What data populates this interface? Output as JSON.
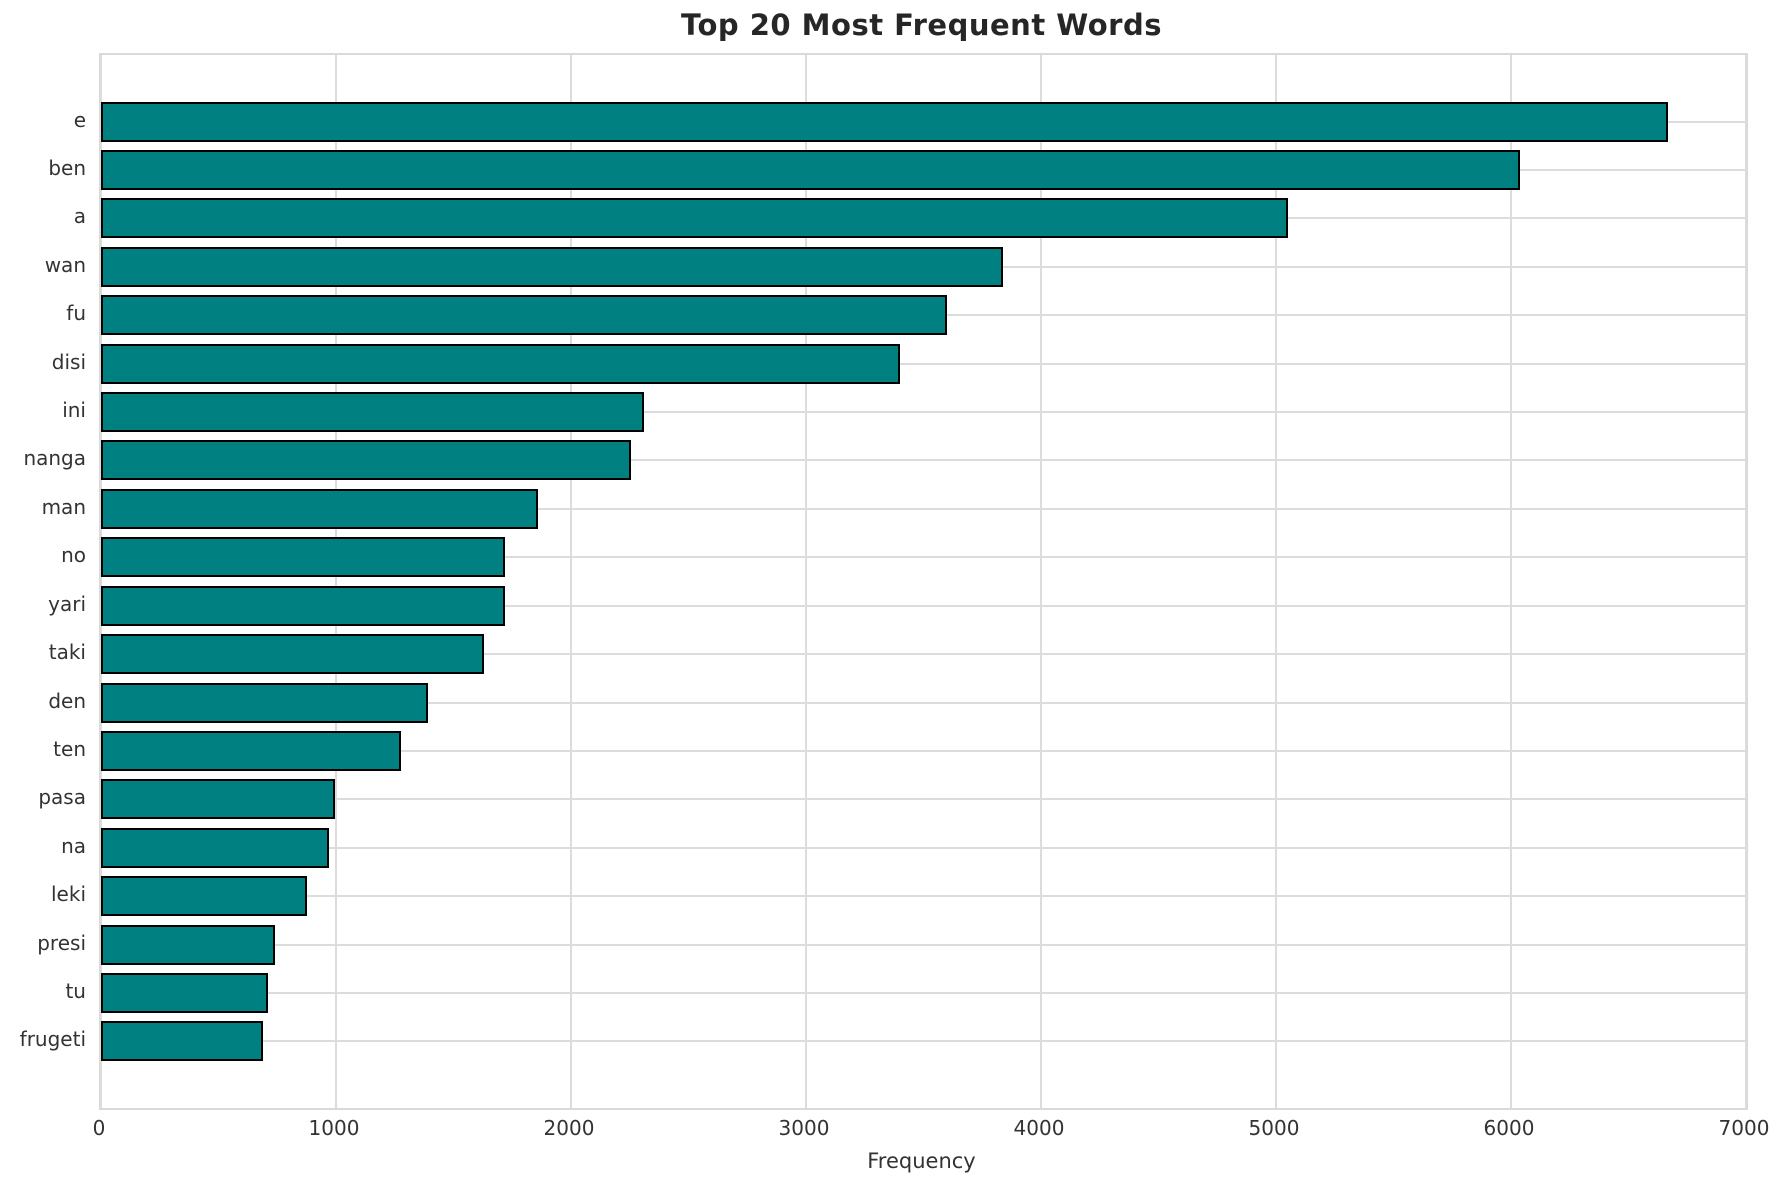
{
  "chart_data": {
    "type": "bar",
    "orientation": "horizontal",
    "title": "Top 20 Most Frequent Words",
    "xlabel": "Frequency",
    "ylabel": "",
    "categories": [
      "e",
      "ben",
      "a",
      "wan",
      "fu",
      "disi",
      "ini",
      "nanga",
      "man",
      "no",
      "yari",
      "taki",
      "den",
      "ten",
      "pasa",
      "na",
      "leki",
      "presi",
      "tu",
      "frugeti"
    ],
    "values": [
      6670,
      6040,
      5050,
      3840,
      3600,
      3400,
      2310,
      2255,
      1860,
      1720,
      1720,
      1630,
      1390,
      1275,
      995,
      970,
      875,
      740,
      710,
      690
    ],
    "xlim": [
      0,
      7000
    ],
    "xticks": [
      0,
      1000,
      2000,
      3000,
      4000,
      5000,
      6000,
      7000
    ],
    "grid": true,
    "legend": "none",
    "colors": {
      "bar_fill": "#008080",
      "bar_edge": "#000000",
      "grid": "#dcdcdc",
      "text": "#333333",
      "title_text": "#262626",
      "background": "#ffffff"
    }
  }
}
